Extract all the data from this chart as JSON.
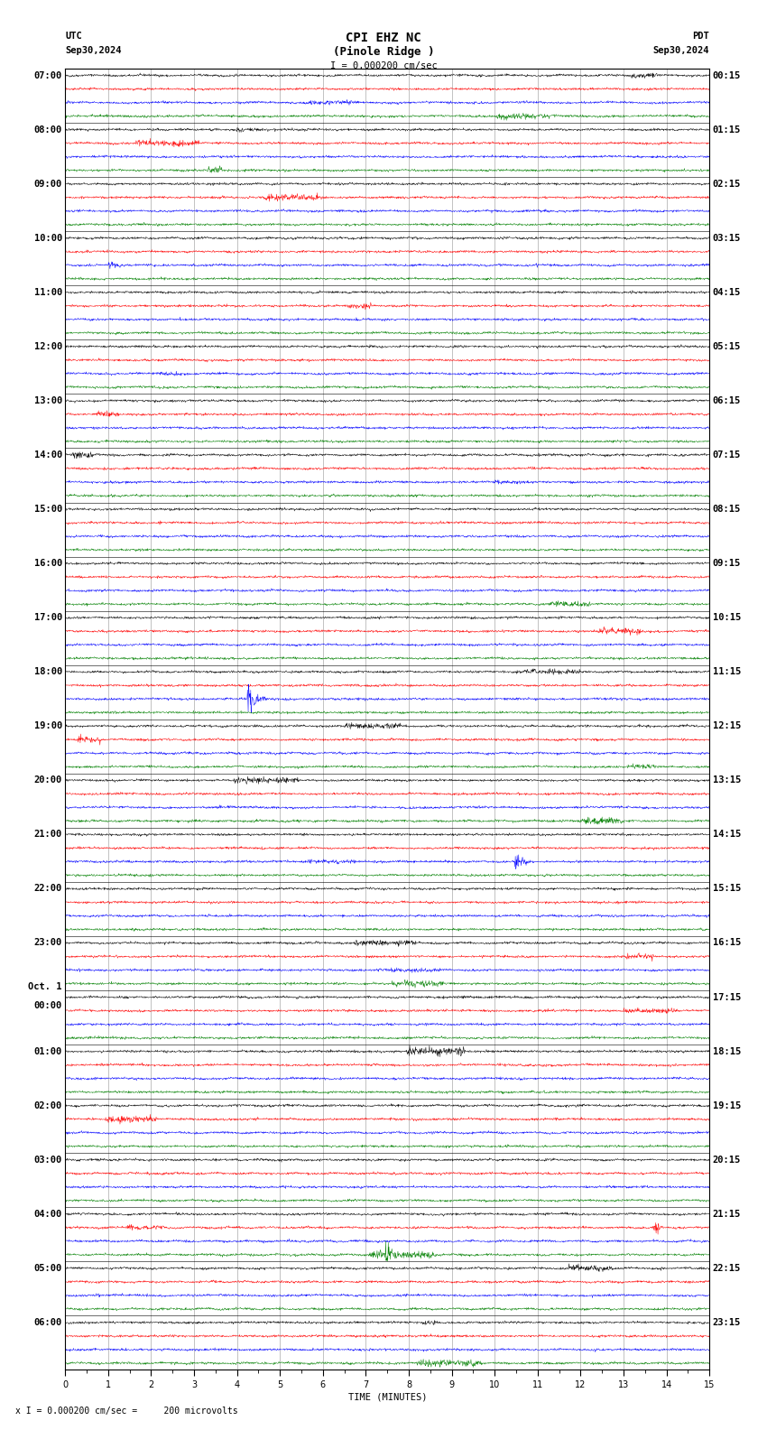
{
  "title_line1": "CPI EHZ NC",
  "title_line2": "(Pinole Ridge )",
  "scale_label": "I = 0.000200 cm/sec",
  "utc_label": "UTC",
  "utc_date": "Sep30,2024",
  "pdt_label": "PDT",
  "pdt_date": "Sep30,2024",
  "xlabel": "TIME (MINUTES)",
  "footer_label": "x I = 0.000200 cm/sec =     200 microvolts",
  "left_times": [
    "07:00",
    "08:00",
    "09:00",
    "10:00",
    "11:00",
    "12:00",
    "13:00",
    "14:00",
    "15:00",
    "16:00",
    "17:00",
    "18:00",
    "19:00",
    "20:00",
    "21:00",
    "22:00",
    "23:00",
    "Oct. 1\n00:00",
    "01:00",
    "02:00",
    "03:00",
    "04:00",
    "05:00",
    "06:00"
  ],
  "right_times": [
    "00:15",
    "01:15",
    "02:15",
    "03:15",
    "04:15",
    "05:15",
    "06:15",
    "07:15",
    "08:15",
    "09:15",
    "10:15",
    "11:15",
    "12:15",
    "13:15",
    "14:15",
    "15:15",
    "16:15",
    "17:15",
    "18:15",
    "19:15",
    "20:15",
    "21:15",
    "22:15",
    "23:15"
  ],
  "colors": [
    "black",
    "red",
    "blue",
    "green"
  ],
  "bg_color": "#ffffff",
  "rows_per_hour": 4,
  "num_hours": 24,
  "xticks": [
    0,
    1,
    2,
    3,
    4,
    5,
    6,
    7,
    8,
    9,
    10,
    11,
    12,
    13,
    14,
    15
  ],
  "grid_color": "#aaaaaa",
  "title_fontsize": 10,
  "label_fontsize": 7.5,
  "tick_fontsize": 7
}
